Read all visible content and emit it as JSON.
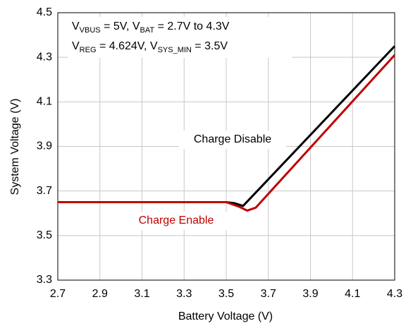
{
  "chart_data": {
    "type": "line",
    "xlabel": "Battery Voltage (V)",
    "ylabel": "System Voltage (V)",
    "xlim": [
      2.7,
      4.3
    ],
    "ylim": [
      3.3,
      4.5
    ],
    "xticks": [
      2.7,
      2.9,
      3.1,
      3.3,
      3.5,
      3.7,
      3.9,
      4.1,
      4.3
    ],
    "yticks": [
      3.3,
      3.5,
      3.7,
      3.9,
      4.1,
      4.3,
      4.5
    ],
    "grid": true,
    "annotations": [
      {
        "parts": [
          "V",
          "VBUS",
          " = 5V, V",
          "BAT",
          " = 2.7V to 4.3V"
        ]
      },
      {
        "parts": [
          "V",
          "REG",
          " = 4.624V, V",
          "SYS_MIN",
          " = 3.5V"
        ]
      }
    ],
    "series": [
      {
        "name": "Charge Disable",
        "color": "#000000",
        "x": [
          2.7,
          3.5,
          3.54,
          3.58,
          4.3
        ],
        "values": [
          3.65,
          3.65,
          3.645,
          3.633,
          4.35
        ]
      },
      {
        "name": "Charge Enable",
        "color": "#c00000",
        "x": [
          2.7,
          3.5,
          3.56,
          3.6,
          3.64,
          4.3
        ],
        "values": [
          3.65,
          3.65,
          3.63,
          3.612,
          3.625,
          4.31
        ]
      }
    ]
  }
}
